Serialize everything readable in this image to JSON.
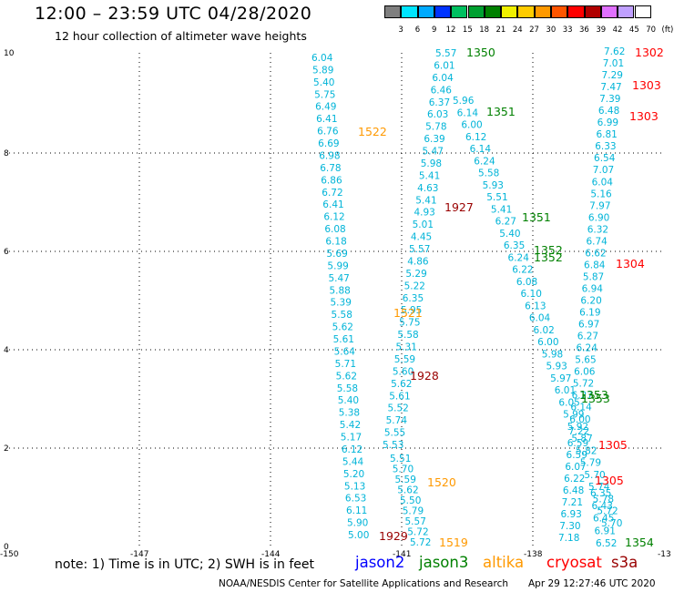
{
  "header": {
    "title": "12:00 – 23:59 UTC 04/28/2020",
    "subtitle": "12 hour collection of altimeter wave heights"
  },
  "colorbar": {
    "labels": [
      "3",
      "6",
      "9",
      "12",
      "15",
      "18",
      "21",
      "24",
      "27",
      "30",
      "33",
      "36",
      "39",
      "42",
      "45",
      "70",
      "(ft)"
    ],
    "colors": [
      "#7f7f7f",
      "#00e5ff",
      "#00aaff",
      "#0033ff",
      "#00c060",
      "#00a030",
      "#008000",
      "#f0f000",
      "#ffcc00",
      "#ff9900",
      "#ff5500",
      "#ff0000",
      "#b00000",
      "#e070ff",
      "#c0a0ff",
      "#ffffff"
    ]
  },
  "axes": {
    "x_ticks": [
      "-150",
      "-147",
      "-144",
      "-141",
      "-138",
      "-13"
    ],
    "y_ticks": [
      "0",
      "2",
      "4",
      "6",
      "8",
      "10"
    ]
  },
  "passes": [
    {
      "label": "1350",
      "color": "#008000"
    },
    {
      "label": "1351",
      "color": "#008000"
    },
    {
      "label": "1351",
      "color": "#008000"
    },
    {
      "label": "1352",
      "color": "#008000"
    },
    {
      "label": "1352",
      "color": "#008000"
    },
    {
      "label": "1353",
      "color": "#008000"
    },
    {
      "label": "1353",
      "color": "#008000"
    },
    {
      "label": "1354",
      "color": "#008000"
    },
    {
      "label": "1522",
      "color": "#ff9900"
    },
    {
      "label": "1521",
      "color": "#ff9900"
    },
    {
      "label": "1520",
      "color": "#ff9900"
    },
    {
      "label": "1519",
      "color": "#ff9900"
    },
    {
      "label": "1927",
      "color": "#990000"
    },
    {
      "label": "1928",
      "color": "#990000"
    },
    {
      "label": "1929",
      "color": "#990000"
    },
    {
      "label": "1302",
      "color": "#ff0000"
    },
    {
      "label": "1303",
      "color": "#ff0000"
    },
    {
      "label": "1303",
      "color": "#ff0000"
    },
    {
      "label": "1304",
      "color": "#ff0000"
    },
    {
      "label": "1305",
      "color": "#ff0000"
    },
    {
      "label": "1305",
      "color": "#ff0000"
    }
  ],
  "tracks": {
    "color": "#00b4d8",
    "track_a": [
      "6.04",
      "5.89",
      "5.40",
      "5.75",
      "6.49",
      "6.41",
      "6.76",
      "6.69",
      "6.98",
      "6.78",
      "6.86",
      "6.72",
      "6.41",
      "6.12",
      "6.08",
      "6.18",
      "5.69",
      "5.99",
      "5.47",
      "5.88",
      "5.39",
      "5.58",
      "5.62",
      "5.61",
      "5.64",
      "5.71",
      "5.62",
      "5.58",
      "5.40",
      "5.38",
      "5.42",
      "5.17",
      "6.12",
      "5.44",
      "5.20",
      "5.13",
      "6.53",
      "6.11",
      "5.90",
      "5.00"
    ],
    "track_b": [
      "5.51",
      "5.70",
      "5.59",
      "5.62",
      "5.50",
      "5.79",
      "5.57",
      "5.72",
      "5.72"
    ],
    "track_c": [
      "5.57",
      "6.01",
      "6.04",
      "6.46",
      "6.37",
      "6.03",
      "5.78",
      "6.39",
      "5.47",
      "5.98",
      "5.41",
      "4.63",
      "5.41",
      "4.93",
      "5.01",
      "4.45",
      "5.57",
      "4.86",
      "5.29",
      "5.22",
      "6.35",
      "5.95",
      "5.75",
      "5.58",
      "5.31",
      "5.59",
      "5.60",
      "5.62",
      "5.61",
      "5.52",
      "5.74",
      "5.55",
      "5.53"
    ],
    "track_d": [
      "5.96",
      "6.14",
      "6.00",
      "6.12",
      "6.14",
      "6.24",
      "5.58",
      "5.93",
      "5.51",
      "5.41",
      "6.27",
      "5.40",
      "6.35",
      "6.24",
      "6.22",
      "6.08",
      "6.10",
      "6.13",
      "6.04",
      "6.02",
      "6.00",
      "5.98",
      "5.93",
      "5.97",
      "6.01",
      "6.05",
      "5.99",
      "5.92",
      "5.87",
      "5.82",
      "5.79",
      "5.70",
      "5.74",
      "5.78",
      "5.72",
      "5.70"
    ],
    "track_e": [
      "7.62",
      "7.01",
      "7.29",
      "7.47",
      "7.39",
      "6.48",
      "6.99",
      "6.81",
      "6.33",
      "6.54",
      "7.07",
      "6.04",
      "5.16",
      "7.97",
      "6.90",
      "6.32",
      "6.74",
      "6.62",
      "6.84",
      "5.87",
      "6.94",
      "6.20",
      "6.19",
      "6.97",
      "6.27",
      "6.24",
      "5.65",
      "6.06",
      "5.72",
      "6.27",
      "6.14",
      "6.00",
      "7.22",
      "6.59",
      "6.59",
      "6.07",
      "6.22",
      "6.48",
      "7.21",
      "6.93",
      "7.30",
      "7.18"
    ],
    "track_f": [
      "6.35",
      "6.43",
      "6.45",
      "6.91",
      "6.52"
    ]
  },
  "legend": {
    "note": "note:  1) Time is in UTC;  2) SWH is in feet",
    "satellites": [
      {
        "name": "jason2",
        "color": "#0000ff"
      },
      {
        "name": "jason3",
        "color": "#008000"
      },
      {
        "name": "altika",
        "color": "#ff9900"
      },
      {
        "name": "cryosat",
        "color": "#ff0000"
      },
      {
        "name": "s3a",
        "color": "#990000"
      }
    ]
  },
  "footer": {
    "credit": "NOAA/NESDIS Center for Satellite Applications and Research",
    "timestamp": "Apr 29 12:27:46 UTC 2020"
  }
}
